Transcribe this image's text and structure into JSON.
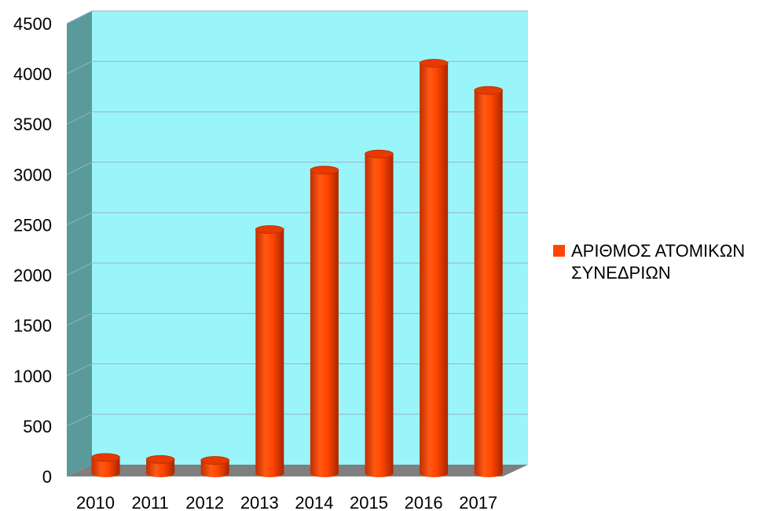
{
  "chart_data": {
    "type": "bar",
    "title": "",
    "xlabel": "",
    "ylabel": "",
    "categories": [
      "2010",
      "2011",
      "2012",
      "2013",
      "2014",
      "2015",
      "2016",
      "2017"
    ],
    "series": [
      {
        "name": "ΑΡΙΘΜΟΣ ΑΤΟΜΙΚΩΝ ΣΥΝΕΔΡΙΩΝ",
        "values": [
          150,
          130,
          120,
          2410,
          3000,
          3160,
          4060,
          3790
        ]
      }
    ],
    "ylim": [
      0,
      4500
    ],
    "yticks": [
      "0",
      "500",
      "1000",
      "1500",
      "2000",
      "2500",
      "3000",
      "3500",
      "4000",
      "4500"
    ],
    "grid": true,
    "legend_position": "right",
    "style": "3d-cylinder"
  },
  "colors": {
    "bar": "#ff4500",
    "plot_background": "#99f5fa",
    "side_wall": "#5a9a9a",
    "floor": "#7f7f7f",
    "gridline": "#9ab0c8"
  }
}
